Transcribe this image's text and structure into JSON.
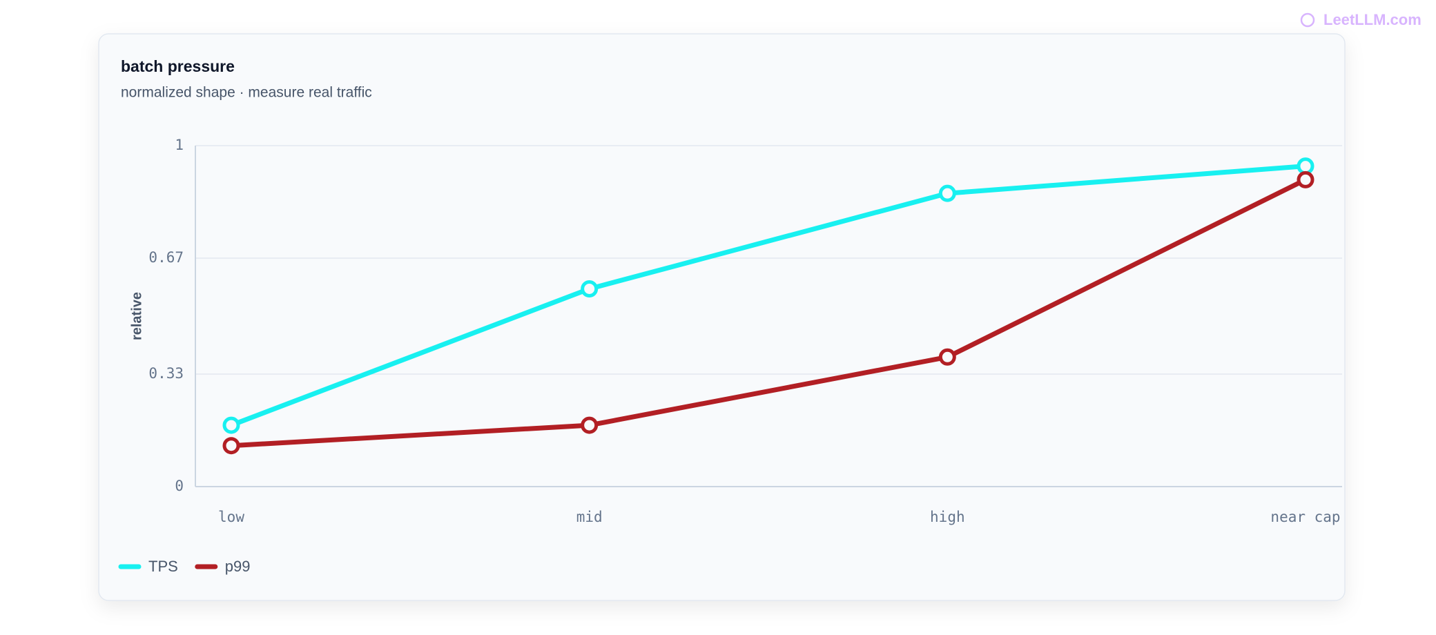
{
  "watermark": "LeetLLM.com",
  "chart_data": {
    "type": "line",
    "title": "batch pressure",
    "subtitle": "normalized shape · measure real traffic",
    "y_label": "relative",
    "categories": [
      "low",
      "mid",
      "high",
      "near cap"
    ],
    "series": [
      {
        "name": "TPS",
        "color": "#18f0f0",
        "values": [
          0.18,
          0.58,
          0.86,
          0.94
        ]
      },
      {
        "name": "p99",
        "color": "#b21f24",
        "values": [
          0.12,
          0.18,
          0.38,
          0.9
        ]
      }
    ],
    "ylim": [
      0,
      1
    ],
    "yticks": [
      0,
      0.33,
      0.67,
      1
    ],
    "grid": true,
    "legend": "bottom-left"
  }
}
